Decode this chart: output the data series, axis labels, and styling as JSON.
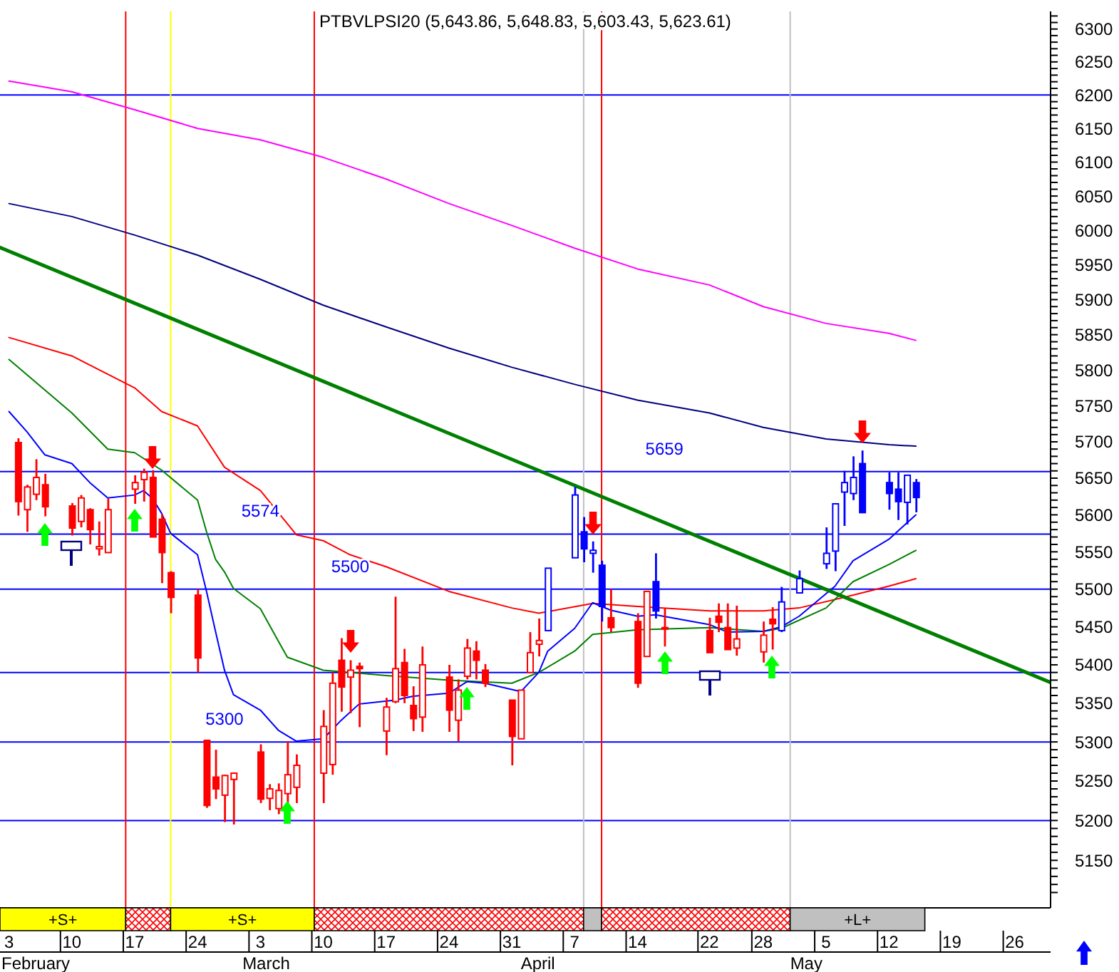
{
  "chart_data": {
    "type": "candlestick",
    "title": "PTBVLPSI20 (5,643.86, 5,648.83, 5,603.43, 5,623.61)",
    "log": true,
    "ylim": [
      5091,
      6327
    ],
    "yticks": [
      {
        "value": 5110,
        "label": null
      },
      {
        "value": 5120,
        "label": null
      },
      {
        "value": 5130,
        "label": null
      },
      {
        "value": 5140,
        "label": null
      },
      5150,
      {
        "value": 5160,
        "label": null
      },
      {
        "value": 5170,
        "label": null
      },
      {
        "value": 5180,
        "label": null
      },
      {
        "value": 5190,
        "label": null
      },
      5200,
      {
        "value": 5210,
        "label": null
      },
      {
        "value": 5220,
        "label": null
      },
      {
        "value": 5230,
        "label": null
      },
      {
        "value": 5240,
        "label": null
      },
      5250,
      {
        "value": 5260,
        "label": null
      },
      {
        "value": 5270,
        "label": null
      },
      {
        "value": 5280,
        "label": null
      },
      {
        "value": 5290,
        "label": null
      },
      5300,
      {
        "value": 5310,
        "label": null
      },
      {
        "value": 5320,
        "label": null
      },
      {
        "value": 5330,
        "label": null
      },
      {
        "value": 5340,
        "label": null
      },
      5350,
      {
        "value": 5360,
        "label": null
      },
      {
        "value": 5370,
        "label": null
      },
      {
        "value": 5380,
        "label": null
      },
      {
        "value": 5390,
        "label": null
      },
      5400,
      {
        "value": 5410,
        "label": null
      },
      {
        "value": 5420,
        "label": null
      },
      {
        "value": 5430,
        "label": null
      },
      {
        "value": 5440,
        "label": null
      },
      5450,
      {
        "value": 5460,
        "label": null
      },
      {
        "value": 5470,
        "label": null
      },
      {
        "value": 5480,
        "label": null
      },
      {
        "value": 5490,
        "label": null
      },
      5500,
      {
        "value": 5510,
        "label": null
      },
      {
        "value": 5520,
        "label": null
      },
      {
        "value": 5530,
        "label": null
      },
      {
        "value": 5540,
        "label": null
      },
      5550,
      {
        "value": 5560,
        "label": null
      },
      {
        "value": 5570,
        "label": null
      },
      {
        "value": 5580,
        "label": null
      },
      {
        "value": 5590,
        "label": null
      },
      5600,
      {
        "value": 5610,
        "label": null
      },
      {
        "value": 5620,
        "label": null
      },
      {
        "value": 5630,
        "label": null
      },
      {
        "value": 5640,
        "label": null
      },
      5650,
      {
        "value": 5660,
        "label": null
      },
      {
        "value": 5670,
        "label": null
      },
      {
        "value": 5680,
        "label": null
      },
      {
        "value": 5690,
        "label": null
      },
      5700,
      {
        "value": 5710,
        "label": null
      },
      {
        "value": 5720,
        "label": null
      },
      {
        "value": 5730,
        "label": null
      },
      {
        "value": 5740,
        "label": null
      },
      5750,
      {
        "value": 5760,
        "label": null
      },
      {
        "value": 5770,
        "label": null
      },
      {
        "value": 5780,
        "label": null
      },
      {
        "value": 5790,
        "label": null
      },
      5800,
      {
        "value": 5810,
        "label": null
      },
      {
        "value": 5820,
        "label": null
      },
      {
        "value": 5830,
        "label": null
      },
      {
        "value": 5840,
        "label": null
      },
      5850,
      {
        "value": 5860,
        "label": null
      },
      {
        "value": 5870,
        "label": null
      },
      {
        "value": 5880,
        "label": null
      },
      {
        "value": 5890,
        "label": null
      },
      5900,
      {
        "value": 5910,
        "label": null
      },
      {
        "value": 5920,
        "label": null
      },
      {
        "value": 5930,
        "label": null
      },
      {
        "value": 5940,
        "label": null
      },
      5950,
      {
        "value": 5960,
        "label": null
      },
      {
        "value": 5970,
        "label": null
      },
      {
        "value": 5980,
        "label": null
      },
      {
        "value": 5990,
        "label": null
      },
      6000,
      {
        "value": 6010,
        "label": null
      },
      {
        "value": 6020,
        "label": null
      },
      {
        "value": 6030,
        "label": null
      },
      {
        "value": 6040,
        "label": null
      },
      6050,
      {
        "value": 6060,
        "label": null
      },
      {
        "value": 6070,
        "label": null
      },
      {
        "value": 6080,
        "label": null
      },
      {
        "value": 6090,
        "label": null
      },
      6100,
      {
        "value": 6110,
        "label": null
      },
      {
        "value": 6120,
        "label": null
      },
      {
        "value": 6130,
        "label": null
      },
      {
        "value": 6140,
        "label": null
      },
      6150,
      {
        "value": 6160,
        "label": null
      },
      {
        "value": 6170,
        "label": null
      },
      {
        "value": 6180,
        "label": null
      },
      {
        "value": 6190,
        "label": null
      },
      6200,
      {
        "value": 6210,
        "label": null
      },
      {
        "value": 6220,
        "label": null
      },
      {
        "value": 6230,
        "label": null
      },
      {
        "value": 6240,
        "label": null
      },
      6250,
      {
        "value": 6260,
        "label": null
      },
      {
        "value": 6270,
        "label": null
      },
      {
        "value": 6280,
        "label": null
      },
      {
        "value": 6290,
        "label": null
      },
      6300,
      {
        "value": 6310,
        "label": null
      },
      {
        "value": 6320,
        "label": null
      }
    ],
    "xlim": [
      "--02-02",
      "--05-30"
    ],
    "xticks": [
      {
        "value": "--02-03",
        "label": "3"
      },
      {
        "value": "--02-10",
        "label": "10"
      },
      {
        "value": "--02-17",
        "label": "17"
      },
      {
        "value": "--02-24",
        "label": "24"
      },
      {
        "value": "--03-03",
        "label": "3"
      },
      {
        "value": "--03-10",
        "label": "10"
      },
      {
        "value": "--03-17",
        "label": "17"
      },
      {
        "value": "--03-24",
        "label": "24"
      },
      {
        "value": "--03-31",
        "label": "31"
      },
      {
        "value": "--04-07",
        "label": "7"
      },
      {
        "value": "--04-14",
        "label": "14"
      },
      {
        "value": "--04-22",
        "label": "22"
      },
      {
        "value": "--04-28",
        "label": "28"
      },
      {
        "value": "--05-05",
        "label": "5"
      },
      {
        "value": "--05-12",
        "label": "12"
      },
      {
        "value": "--05-19",
        "label": "19"
      },
      {
        "value": "--05-26",
        "label": "26"
      }
    ],
    "series": [
      {
        "x": [
          "--02-04",
          "--02-05",
          "--02-06",
          "--02-07",
          "--02-10",
          "--02-11",
          "--02-12",
          "--02-13",
          "--02-14",
          "--02-17",
          "--02-18",
          "--02-19",
          "--02-20",
          "--02-21",
          "--02-24",
          "--02-25",
          "--02-26",
          "--02-27",
          "--02-28",
          "--03-03",
          "--03-04",
          "--03-05",
          "--03-06",
          "--03-07",
          "--03-10",
          "--03-11",
          "--03-12",
          "--03-13",
          "--03-14",
          "--03-17",
          "--03-18",
          "--03-19",
          "--03-20",
          "--03-21",
          "--03-24",
          "--03-25",
          "--03-26",
          "--03-27",
          "--03-28",
          "--03-31",
          "--04-01",
          "--04-02",
          "--04-03",
          "--04-04",
          "--04-07",
          "--04-08",
          "--04-09",
          "--04-10",
          "--04-11",
          "--04-14",
          "--04-15",
          "--04-16",
          "--04-17",
          "--04-22",
          "--04-23",
          "--04-24",
          "--04-25",
          "--04-28",
          "--04-29",
          "--04-30",
          "--05-02",
          "--05-05",
          "--05-06",
          "--05-07",
          "--05-08",
          "--05-09",
          "--05-12",
          "--05-13",
          "--05-14",
          "--05-15"
        ],
        "ohlc": [
          [
            5699,
            5705,
            5599,
            5618
          ],
          [
            5607,
            5641,
            5577,
            5638
          ],
          [
            5628,
            5676,
            5620,
            5651
          ],
          [
            5641,
            5656,
            5598,
            5611
          ],
          [
            5612,
            5616,
            5572,
            5582
          ],
          [
            5591,
            5627,
            5583,
            5623
          ],
          [
            5607,
            5609,
            5560,
            5580
          ],
          [
            5554,
            5591,
            5545,
            5557
          ],
          [
            5549,
            5622,
            5549,
            5607
          ],
          [
            5635,
            5654,
            5615,
            5644
          ],
          [
            5648,
            5663,
            5618,
            5658
          ],
          [
            5651,
            5661,
            5570,
            5570
          ],
          [
            5594,
            5601,
            5508,
            5549
          ],
          [
            5522,
            5524,
            5468,
            5489
          ],
          [
            5492,
            5500,
            5390,
            5409
          ],
          [
            5302,
            5303,
            5216,
            5219
          ],
          [
            5255,
            5290,
            5227,
            5240
          ],
          [
            5232,
            5258,
            5198,
            5257
          ],
          [
            5252,
            5261,
            5195,
            5260
          ],
          [
            5287,
            5297,
            5222,
            5227
          ],
          [
            5228,
            5246,
            5213,
            5240
          ],
          [
            5215,
            5247,
            5208,
            5238
          ],
          [
            5234,
            5301,
            5222,
            5258
          ],
          [
            5242,
            5284,
            5222,
            5270
          ],
          [
            5260,
            5341,
            5222,
            5320
          ],
          [
            5271,
            5390,
            5258,
            5376
          ],
          [
            5406,
            5435,
            5339,
            5371
          ],
          [
            5384,
            5406,
            5337,
            5393
          ],
          [
            5398,
            5403,
            5319,
            5395
          ],
          [
            5314,
            5357,
            5283,
            5345
          ],
          [
            5352,
            5490,
            5350,
            5395
          ],
          [
            5403,
            5421,
            5350,
            5360
          ],
          [
            5347,
            5372,
            5314,
            5330
          ],
          [
            5332,
            5424,
            5313,
            5400
          ],
          [
            5384,
            5400,
            5313,
            5341
          ],
          [
            5328,
            5381,
            5301,
            5367
          ],
          [
            5385,
            5434,
            5381,
            5422
          ],
          [
            5418,
            5431,
            5381,
            5406
          ],
          [
            5393,
            5401,
            5371,
            5376
          ],
          [
            5354,
            5354,
            5270,
            5307
          ],
          [
            5304,
            5367,
            5304,
            5367
          ],
          [
            5390,
            5443,
            5390,
            5416
          ],
          [
            5427,
            5461,
            5411,
            5432
          ],
          [
            5445,
            5528,
            5445,
            5528
          ],
          [
            5542,
            5638,
            5542,
            5627
          ],
          [
            5577,
            5597,
            5536,
            5554
          ],
          [
            5548,
            5564,
            5522,
            5552
          ],
          [
            5532,
            5538,
            5457,
            5477
          ],
          [
            5462,
            5500,
            5443,
            5449
          ],
          [
            5457,
            5468,
            5370,
            5376
          ],
          [
            5411,
            5497,
            5411,
            5497
          ],
          [
            5510,
            5548,
            5461,
            5471
          ],
          [
            5449,
            5475,
            5424,
            5447
          ],
          [
            5445,
            5462,
            5416,
            5416
          ],
          [
            5464,
            5481,
            5443,
            5456
          ],
          [
            5449,
            5481,
            5420,
            5420
          ],
          [
            5422,
            5478,
            5412,
            5434
          ],
          [
            5417,
            5457,
            5403,
            5439
          ],
          [
            5460,
            5476,
            5420,
            5454
          ],
          [
            5445,
            5503,
            5443,
            5483
          ],
          [
            5495,
            5525,
            5495,
            5514
          ],
          [
            5534,
            5583,
            5527,
            5548
          ],
          [
            5551,
            5615,
            5524,
            5615
          ],
          [
            5631,
            5660,
            5585,
            5644
          ],
          [
            5629,
            5680,
            5620,
            5651
          ],
          [
            5670,
            5688,
            5603,
            5603
          ],
          [
            5644,
            5658,
            5607,
            5629
          ],
          [
            5635,
            5658,
            5593,
            5618
          ],
          [
            5617,
            5654,
            5587,
            5654
          ],
          [
            5643.86,
            5648.83,
            5603.43,
            5623.61
          ]
        ],
        "colors": [
          "#ff0000",
          "#ff0000",
          "#ff0000",
          "#ff0000",
          "#ff0000",
          "#ff0000",
          "#ff0000",
          "#ff0000",
          "#ff0000",
          "#ff0000",
          "#ff0000",
          "#ff0000",
          "#ff0000",
          "#ff0000",
          "#ff0000",
          "#ff0000",
          "#ff0000",
          "#ff0000",
          "#ff0000",
          "#ff0000",
          "#ff0000",
          "#ff0000",
          "#ff0000",
          "#ff0000",
          "#ff0000",
          "#ff0000",
          "#ff0000",
          "#ff0000",
          "#ff0000",
          "#ff0000",
          "#ff0000",
          "#ff0000",
          "#ff0000",
          "#ff0000",
          "#ff0000",
          "#ff0000",
          "#ff0000",
          "#ff0000",
          "#ff0000",
          "#ff0000",
          "#ff0000",
          "#ff0000",
          "#ff0000",
          "#0000ff",
          "#0000ff",
          "#0000ff",
          "#0000ff",
          "#0000ff",
          "#ff0000",
          "#ff0000",
          "#ff0000",
          "#0000ff",
          "#ff0000",
          "#ff0000",
          "#ff0000",
          "#ff0000",
          "#ff0000",
          "#ff0000",
          "#ff0000",
          "#0000ff",
          "#0000ff",
          "#0000ff",
          "#0000ff",
          "#0000ff",
          "#0000ff",
          "#0000ff",
          "#0000ff",
          "#0000ff",
          "#0000ff",
          "#0000ff"
        ]
      },
      {
        "type": "line",
        "color": "#ff00ff",
        "x": [
          "--02-03",
          "--02-10",
          "--02-17",
          "--02-24",
          "--03-03",
          "--03-10",
          "--03-17",
          "--03-24",
          "--03-31",
          "--04-07",
          "--04-14",
          "--04-22",
          "--04-28",
          "--05-05",
          "--05-12",
          "--05-15"
        ],
        "values": [
          6221,
          6205,
          6178,
          6150,
          6133,
          6107,
          6075,
          6039,
          6007,
          5974,
          5944,
          5921,
          5890,
          5866,
          5852,
          5842
        ]
      },
      {
        "type": "line",
        "color": "#000080",
        "x": [
          "--02-03",
          "--02-10",
          "--02-17",
          "--02-24",
          "--03-03",
          "--03-10",
          "--03-17",
          "--03-24",
          "--03-31",
          "--04-07",
          "--04-14",
          "--04-22",
          "--04-28",
          "--05-05",
          "--05-12",
          "--05-15"
        ],
        "values": [
          6039,
          6020,
          5993,
          5964,
          5929,
          5892,
          5861,
          5831,
          5804,
          5780,
          5758,
          5740,
          5720,
          5704,
          5696,
          5694
        ]
      },
      {
        "type": "line",
        "color": "#ff0000",
        "x": [
          "--02-03",
          "--02-10",
          "--02-17",
          "--02-20",
          "--02-24",
          "--02-27",
          "--03-03",
          "--03-07",
          "--03-10",
          "--03-13",
          "--03-17",
          "--03-24",
          "--03-31",
          "--04-03",
          "--04-09",
          "--04-14",
          "--04-22",
          "--04-28",
          "--05-02",
          "--05-07",
          "--05-12",
          "--05-15"
        ],
        "values": [
          5846,
          5820,
          5775,
          5742,
          5722,
          5665,
          5633,
          5573,
          5565,
          5546,
          5530,
          5497,
          5475,
          5468,
          5481,
          5477,
          5471,
          5471,
          5475,
          5489,
          5504,
          5514
        ]
      },
      {
        "type": "line",
        "color": "#008000",
        "x": [
          "--02-03",
          "--02-10",
          "--02-14",
          "--02-17",
          "--02-20",
          "--02-24",
          "--02-25",
          "--02-26",
          "--02-27",
          "--02-28",
          "--03-03",
          "--03-05",
          "--03-06",
          "--03-10",
          "--03-17",
          "--03-24",
          "--03-31",
          "--04-03",
          "--04-07",
          "--04-09",
          "--04-14",
          "--04-22",
          "--04-28",
          "--04-30",
          "--05-05",
          "--05-08",
          "--05-12",
          "--05-15"
        ],
        "values": [
          5815,
          5740,
          5690,
          5685,
          5661,
          5620,
          5577,
          5540,
          5523,
          5501,
          5474,
          5431,
          5410,
          5393,
          5386,
          5380,
          5376,
          5390,
          5418,
          5440,
          5446,
          5449,
          5444,
          5448,
          5475,
          5510,
          5533,
          5552
        ]
      },
      {
        "type": "line",
        "color": "#0000ff",
        "x": [
          "--02-03",
          "--02-05",
          "--02-07",
          "--02-10",
          "--02-12",
          "--02-14",
          "--02-17",
          "--02-18",
          "--02-19",
          "--02-20",
          "--02-21",
          "--02-24",
          "--02-25",
          "--02-26",
          "--02-27",
          "--02-28",
          "--03-03",
          "--03-05",
          "--03-07",
          "--03-10",
          "--03-12",
          "--03-14",
          "--03-18",
          "--03-20",
          "--03-24",
          "--03-26",
          "--03-28",
          "--04-01",
          "--04-03",
          "--04-04",
          "--04-07",
          "--04-09",
          "--04-11",
          "--04-14",
          "--04-16",
          "--04-22",
          "--04-24",
          "--04-28",
          "--04-30",
          "--05-02",
          "--05-06",
          "--05-08",
          "--05-12",
          "--05-14",
          "--05-15"
        ],
        "values": [
          5742,
          5714,
          5682,
          5670,
          5644,
          5623,
          5627,
          5633,
          5622,
          5602,
          5575,
          5546,
          5497,
          5444,
          5393,
          5361,
          5341,
          5315,
          5301,
          5304,
          5328,
          5349,
          5354,
          5359,
          5363,
          5378,
          5376,
          5365,
          5390,
          5418,
          5448,
          5482,
          5472,
          5464,
          5466,
          5453,
          5443,
          5444,
          5450,
          5464,
          5504,
          5538,
          5567,
          5589,
          5600
        ]
      },
      {
        "type": "line",
        "color": "#008000",
        "x": [
          "--02-02",
          "--05-30"
        ],
        "values": [
          5975,
          5377
        ]
      }
    ],
    "ref_lines": [
      {
        "axis": "y",
        "value": 6200,
        "color": "#0000ff"
      },
      {
        "axis": "y",
        "value": 5659,
        "color": "#0000ff"
      },
      {
        "axis": "y",
        "value": 5574,
        "color": "#0000ff"
      },
      {
        "axis": "y",
        "value": 5500,
        "color": "#0000ff"
      },
      {
        "axis": "y",
        "value": 5390,
        "color": "#0000ff"
      },
      {
        "axis": "y",
        "value": 5300,
        "color": "#0000ff"
      },
      {
        "axis": "y",
        "value": 5200,
        "color": "#0000ff"
      },
      {
        "axis": "x",
        "value": "--02-16",
        "color": "#ff0000"
      },
      {
        "axis": "x",
        "value": "--02-21",
        "color": "#ffff00"
      },
      {
        "axis": "x",
        "value": "--03-09",
        "color": "#ff0000"
      },
      {
        "axis": "x",
        "value": "--04-08",
        "color": "#c0c0c0"
      },
      {
        "axis": "x",
        "value": "--04-10",
        "color": "#ff0000"
      },
      {
        "axis": "x",
        "value": "--05-01",
        "color": "#c0c0c0"
      }
    ],
    "annotations": [
      {
        "text": "5659",
        "x": "--04-17",
        "y": 5659
      },
      {
        "text": "5574",
        "x": "--03-03",
        "y": 5574
      },
      {
        "text": "5500",
        "x": "--03-13",
        "y": 5500
      },
      {
        "text": "5300",
        "x": "--02-27",
        "y": 5300
      },
      "+S+",
      "+S+",
      "+L+",
      "February",
      "March",
      "April",
      "May"
    ]
  }
}
